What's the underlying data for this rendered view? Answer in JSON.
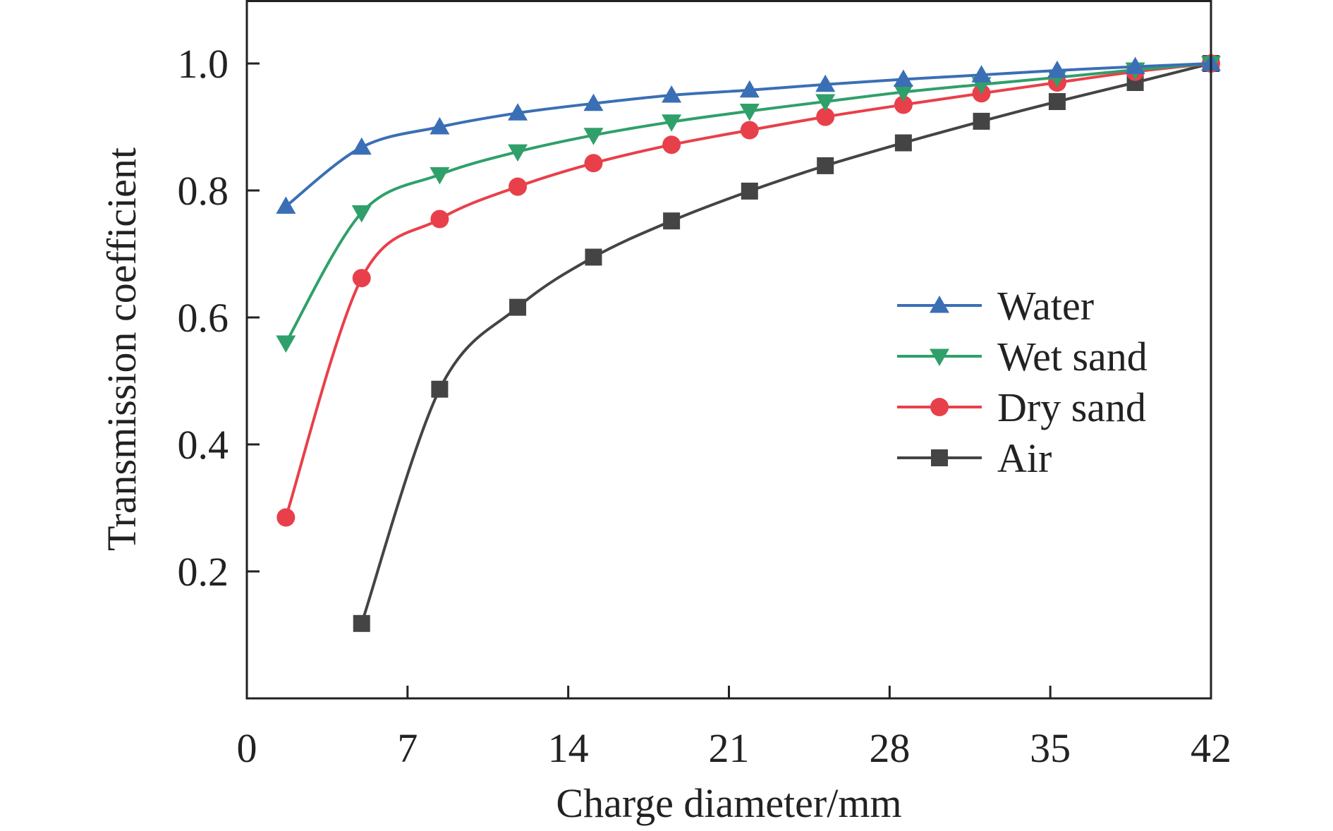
{
  "chart_data": {
    "type": "line",
    "title": "",
    "xlabel": "Charge diameter/mm",
    "ylabel": "Transmission coefficient",
    "xlim": [
      0,
      42
    ],
    "ylim": [
      0,
      1.1
    ],
    "xticks": [
      0,
      7,
      14,
      21,
      28,
      35,
      42
    ],
    "yticks": [
      0.2,
      0.4,
      0.6,
      0.8,
      1.0
    ],
    "xtick_labels": [
      "0",
      "7",
      "14",
      "21",
      "28",
      "35",
      "42"
    ],
    "ytick_labels": [
      "0.2",
      "0.4",
      "0.6",
      "0.8",
      "1.0"
    ],
    "grid": false,
    "legend_position": "center-right",
    "series": [
      {
        "name": "Water",
        "marker": "triangle-up",
        "color": "#3a6fb5",
        "x": [
          1.7,
          5.0,
          8.4,
          11.8,
          15.1,
          18.5,
          21.9,
          25.2,
          28.6,
          32.0,
          35.3,
          38.7,
          42.0
        ],
        "y": [
          0.775,
          0.868,
          0.9,
          0.922,
          0.937,
          0.95,
          0.958,
          0.967,
          0.975,
          0.982,
          0.989,
          0.995,
          1.0
        ]
      },
      {
        "name": "Wet sand",
        "marker": "triangle-down",
        "color": "#2fa06a",
        "x": [
          1.7,
          5.0,
          8.4,
          11.8,
          15.1,
          18.5,
          21.9,
          25.2,
          28.6,
          32.0,
          35.3,
          38.7,
          42.0
        ],
        "y": [
          0.56,
          0.765,
          0.825,
          0.861,
          0.887,
          0.908,
          0.925,
          0.94,
          0.955,
          0.967,
          0.978,
          0.99,
          1.0
        ]
      },
      {
        "name": "Dry sand",
        "marker": "circle",
        "color": "#e8404a",
        "x": [
          1.7,
          5.0,
          8.4,
          11.8,
          15.1,
          18.5,
          21.9,
          25.2,
          28.6,
          32.0,
          35.3,
          38.7,
          42.0
        ],
        "y": [
          0.285,
          0.662,
          0.755,
          0.806,
          0.843,
          0.872,
          0.895,
          0.916,
          0.935,
          0.953,
          0.97,
          0.987,
          1.0
        ]
      },
      {
        "name": "Air",
        "marker": "square",
        "color": "#444444",
        "x": [
          5.0,
          8.4,
          11.8,
          15.1,
          18.5,
          21.9,
          25.2,
          28.6,
          32.0,
          35.3,
          38.7,
          42.0
        ],
        "y": [
          0.118,
          0.487,
          0.616,
          0.695,
          0.752,
          0.799,
          0.839,
          0.875,
          0.909,
          0.94,
          0.97,
          1.0
        ]
      }
    ]
  }
}
